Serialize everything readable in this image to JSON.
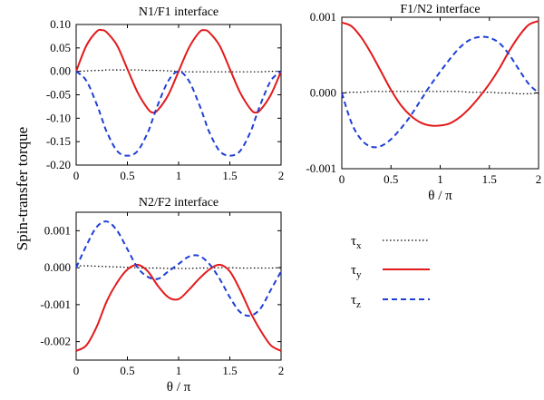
{
  "figure": {
    "ylabel": "Spin-transfer torque",
    "colors": {
      "tx": "#000000",
      "ty": "#e31a1c",
      "tz": "#1f3fd6"
    }
  },
  "legend": {
    "placement": "bottom-right",
    "entries": [
      {
        "symbol": "τ",
        "sub": "x",
        "series": "tx",
        "style": "dotted"
      },
      {
        "symbol": "τ",
        "sub": "y",
        "series": "ty",
        "style": "solid"
      },
      {
        "symbol": "τ",
        "sub": "z",
        "series": "tz",
        "style": "dashed"
      }
    ]
  },
  "chart_data": [
    {
      "type": "line",
      "title": "N1/F1 interface",
      "xlabel": "",
      "ylabel": "",
      "xlim": [
        0,
        2
      ],
      "ylim": [
        -0.2,
        0.1
      ],
      "xticks": [
        0,
        0.5,
        1,
        1.5,
        2
      ],
      "xtick_labels": [
        "0",
        "0.5",
        "1",
        "1.5",
        "2"
      ],
      "yticks": [
        0.1,
        0.05,
        0,
        -0.05,
        -0.1,
        -0.15,
        -0.2
      ],
      "ytick_labels": [
        "0.10",
        "0.05",
        "0.00",
        "-0.05",
        "-0.10",
        "-0.15",
        "-0.20"
      ],
      "grid": false,
      "x": [
        0,
        0.1,
        0.2,
        0.25,
        0.3,
        0.4,
        0.5,
        0.6,
        0.7,
        0.75,
        0.8,
        0.9,
        1.0,
        1.1,
        1.2,
        1.25,
        1.3,
        1.4,
        1.5,
        1.6,
        1.7,
        1.75,
        1.8,
        1.9,
        2.0
      ],
      "series": [
        {
          "key": "tx",
          "values": [
            0,
            0.001,
            0.002,
            0.002,
            0.003,
            0.003,
            0.003,
            0.003,
            0.002,
            0.002,
            0.002,
            0.001,
            0,
            -0.001,
            -0.001,
            -0.001,
            -0.001,
            -0.001,
            -0.001,
            -0.001,
            -0.001,
            -0.001,
            -0.001,
            0,
            0
          ]
        },
        {
          "key": "ty",
          "values": [
            0,
            0.055,
            0.085,
            0.088,
            0.083,
            0.055,
            0.005,
            -0.045,
            -0.08,
            -0.088,
            -0.082,
            -0.05,
            0,
            0.05,
            0.083,
            0.088,
            0.083,
            0.055,
            0.005,
            -0.045,
            -0.08,
            -0.088,
            -0.082,
            -0.05,
            0
          ]
        },
        {
          "key": "tz",
          "values": [
            0,
            -0.02,
            -0.07,
            -0.1,
            -0.13,
            -0.17,
            -0.18,
            -0.17,
            -0.13,
            -0.1,
            -0.07,
            -0.02,
            0,
            -0.02,
            -0.07,
            -0.1,
            -0.13,
            -0.17,
            -0.18,
            -0.17,
            -0.13,
            -0.1,
            -0.07,
            -0.02,
            0
          ]
        }
      ]
    },
    {
      "type": "line",
      "title": "F1/N2 interface",
      "xlabel": "θ / π",
      "ylabel": "",
      "xlim": [
        0,
        2
      ],
      "ylim": [
        -0.001,
        0.001
      ],
      "xticks": [
        0,
        0.5,
        1,
        1.5,
        2
      ],
      "xtick_labels": [
        "0",
        "0.5",
        "1",
        "1.5",
        "2"
      ],
      "yticks": [
        0.001,
        0,
        -0.001
      ],
      "ytick_labels": [
        "0.001",
        "0.000",
        "-0.001"
      ],
      "grid": false,
      "x": [
        0,
        0.1,
        0.2,
        0.3,
        0.4,
        0.5,
        0.6,
        0.7,
        0.8,
        0.9,
        1.0,
        1.1,
        1.2,
        1.3,
        1.4,
        1.5,
        1.6,
        1.7,
        1.8,
        1.9,
        2.0
      ],
      "series": [
        {
          "key": "tx",
          "values": [
            0,
            1e-05,
            1e-05,
            2e-05,
            2e-05,
            2e-05,
            2e-05,
            2e-05,
            2e-05,
            2e-05,
            2e-05,
            2e-05,
            2e-05,
            1e-05,
            1e-05,
            1e-05,
            0,
            0,
            -1e-05,
            -1e-05,
            0
          ]
        },
        {
          "key": "ty",
          "values": [
            0.00093,
            0.00088,
            0.00073,
            0.00052,
            0.00028,
            4e-05,
            -0.00016,
            -0.0003,
            -0.00039,
            -0.00043,
            -0.00043,
            -0.0004,
            -0.00032,
            -0.0002,
            -5e-05,
            0.00012,
            0.00032,
            0.00055,
            0.00075,
            0.0009,
            0.00095
          ]
        },
        {
          "key": "tz",
          "values": [
            0,
            -0.0004,
            -0.00062,
            -0.00071,
            -0.0007,
            -0.00061,
            -0.00047,
            -0.0003,
            -0.0001,
            0.0001,
            0.00028,
            0.00045,
            0.0006,
            0.0007,
            0.00074,
            0.00073,
            0.00066,
            0.00051,
            0.00031,
            0.00012,
            0
          ]
        }
      ]
    },
    {
      "type": "line",
      "title": "N2/F2 interface",
      "xlabel": "θ / π",
      "ylabel": "",
      "xlim": [
        0,
        2
      ],
      "ylim": [
        -0.0025,
        0.0015
      ],
      "xticks": [
        0,
        0.5,
        1,
        1.5,
        2
      ],
      "xtick_labels": [
        "0",
        "0.5",
        "1",
        "1.5",
        "2"
      ],
      "yticks": [
        0.001,
        0,
        -0.001,
        -0.002
      ],
      "ytick_labels": [
        "0.001",
        "0.000",
        "-0.001",
        "-0.002"
      ],
      "grid": false,
      "x": [
        0,
        0.1,
        0.2,
        0.3,
        0.4,
        0.5,
        0.6,
        0.7,
        0.8,
        0.9,
        1.0,
        1.1,
        1.2,
        1.3,
        1.4,
        1.5,
        1.6,
        1.7,
        1.8,
        1.9,
        2.0
      ],
      "series": [
        {
          "key": "tx",
          "values": [
            5e-05,
            5e-05,
            4e-05,
            3e-05,
            2e-05,
            1e-05,
            0,
            -1e-05,
            -1e-05,
            -2e-05,
            -2e-05,
            -2e-05,
            -1e-05,
            -1e-05,
            0,
            0,
            -1e-05,
            -1e-05,
            -1e-05,
            -1e-05,
            0
          ]
        },
        {
          "key": "ty",
          "values": [
            -0.00225,
            -0.0021,
            -0.0016,
            -0.0009,
            -0.0004,
            -5e-05,
            8e-05,
            -0.0001,
            -0.0005,
            -0.0008,
            -0.00085,
            -0.0006,
            -0.0003,
            -5e-05,
            8e-05,
            -0.0001,
            -0.0006,
            -0.0012,
            -0.0017,
            -0.0021,
            -0.00225
          ]
        },
        {
          "key": "tz",
          "values": [
            0,
            0.0006,
            0.0011,
            0.00125,
            0.001,
            0.0005,
            0,
            -0.00025,
            -0.0003,
            -0.0001,
            0.0001,
            0.0003,
            0.00032,
            0.0001,
            -0.0003,
            -0.0008,
            -0.0012,
            -0.0013,
            -0.0011,
            -0.0006,
            -0.0001
          ]
        }
      ]
    }
  ]
}
